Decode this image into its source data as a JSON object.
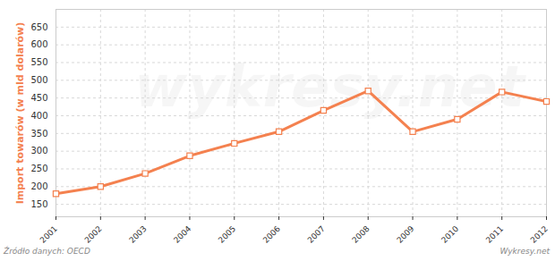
{
  "chart_data": {
    "type": "line",
    "y_label": "Import towarów (w mld dolarów)",
    "annotations": [
      "Źródło danych: OECD",
      "Wykresy.net",
      "wykresy.net"
    ],
    "x": [
      2001,
      2002,
      2003,
      2004,
      2005,
      2006,
      2007,
      2008,
      2009,
      2010,
      2011,
      2012
    ],
    "series": [
      {
        "name": "Import towarów",
        "color": "#f4814f",
        "values": [
          180,
          200,
          237,
          287,
          322,
          355,
          415,
          470,
          355,
          390,
          467,
          440
        ]
      }
    ],
    "xlim": [
      2001,
      2012
    ],
    "xticks": [
      2001,
      2002,
      2003,
      2004,
      2005,
      2006,
      2007,
      2008,
      2009,
      2010,
      2011,
      2012
    ],
    "ylim": [
      115,
      700
    ],
    "yticks": [
      150,
      200,
      250,
      300,
      350,
      400,
      450,
      500,
      550,
      600,
      650
    ],
    "grid": true,
    "marker": "square"
  }
}
